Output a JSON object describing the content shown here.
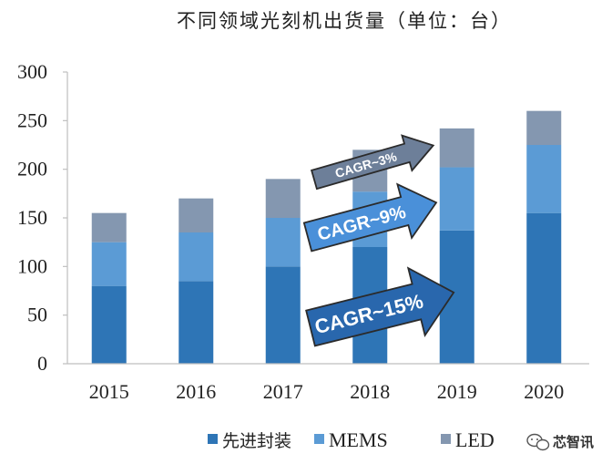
{
  "chart_data": {
    "type": "bar",
    "stacked": true,
    "title": "不同领域光刻机出货量（单位：台）",
    "categories": [
      "2015",
      "2016",
      "2017",
      "2018",
      "2019",
      "2020"
    ],
    "series": [
      {
        "name": "先进封装",
        "values": [
          80,
          85,
          100,
          120,
          137,
          155
        ],
        "color": "#2e75b6"
      },
      {
        "name": "MEMS",
        "values": [
          45,
          50,
          50,
          57,
          65,
          70
        ],
        "color": "#5b9bd5"
      },
      {
        "name": "LED",
        "values": [
          30,
          35,
          40,
          43,
          40,
          35
        ],
        "color": "#8497b0"
      }
    ],
    "ylim": [
      0,
      300
    ],
    "yticks": [
      0,
      50,
      100,
      150,
      200,
      250,
      300
    ],
    "grid": false,
    "legend_position": "bottom",
    "annotations": [
      {
        "text": "CAGR~3%",
        "series": "LED"
      },
      {
        "text": "CAGR~9%",
        "series": "MEMS"
      },
      {
        "text": "CAGR~15%",
        "series": "先进封装"
      }
    ]
  },
  "watermark": {
    "text": "芯智讯",
    "icon": "wechat-icon"
  }
}
